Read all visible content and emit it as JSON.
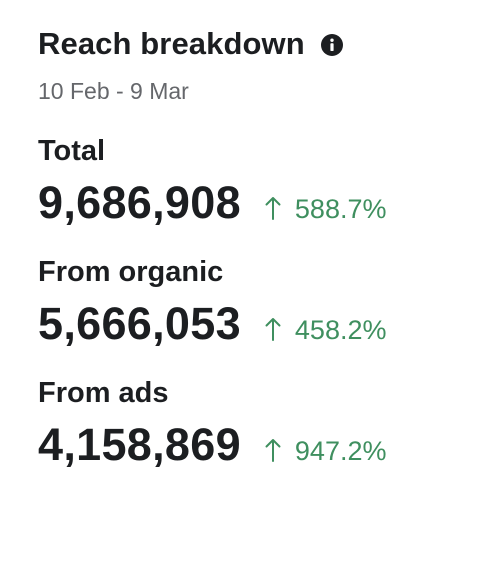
{
  "header": {
    "title": "Reach breakdown",
    "info_icon": "info-icon",
    "date_range": "10 Feb - 9 Mar"
  },
  "metrics": [
    {
      "label": "Total",
      "value": "9,686,908",
      "change": "588.7%",
      "trend_icon": "arrow-up-icon"
    },
    {
      "label": "From organic",
      "value": "5,666,053",
      "change": "458.2%",
      "trend_icon": "arrow-up-icon"
    },
    {
      "label": "From ads",
      "value": "4,158,869",
      "change": "947.2%",
      "trend_icon": "arrow-up-icon"
    }
  ],
  "colors": {
    "text_primary": "#1c1e21",
    "text_secondary": "#65676b",
    "positive": "#3f8f5f"
  }
}
